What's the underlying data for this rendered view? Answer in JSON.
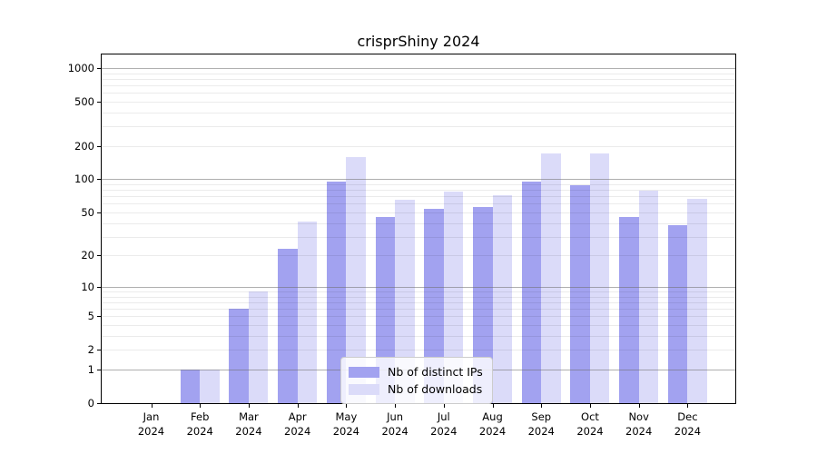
{
  "title": "crisprShiny 2024",
  "legend": {
    "items": [
      {
        "label": "Nb of distinct IPs",
        "color": "#a2a2f0"
      },
      {
        "label": "Nb of downloads",
        "color": "#dbdbf9"
      }
    ]
  },
  "chart_data": {
    "type": "bar",
    "title": "crisprShiny 2024",
    "categories": [
      "Jan 2024",
      "Feb 2024",
      "Mar 2024",
      "Apr 2024",
      "May 2024",
      "Jun 2024",
      "Jul 2024",
      "Aug 2024",
      "Sep 2024",
      "Oct 2024",
      "Nov 2024",
      "Dec 2024"
    ],
    "x_tick_line1": [
      "Jan",
      "Feb",
      "Mar",
      "Apr",
      "May",
      "Jun",
      "Jul",
      "Aug",
      "Sep",
      "Oct",
      "Nov",
      "Dec"
    ],
    "x_tick_line2": [
      "2024",
      "2024",
      "2024",
      "2024",
      "2024",
      "2024",
      "2024",
      "2024",
      "2024",
      "2024",
      "2024",
      "2024"
    ],
    "series": [
      {
        "name": "Nb of distinct IPs",
        "color": "#a2a2f0",
        "values": [
          0,
          1,
          6,
          23,
          96,
          45,
          54,
          56,
          96,
          89,
          45,
          38
        ]
      },
      {
        "name": "Nb of downloads",
        "color": "#dbdbf9",
        "values": [
          0,
          1,
          9,
          41,
          160,
          65,
          77,
          72,
          172,
          172,
          79,
          66
        ]
      }
    ],
    "yscale": "log(y+1)",
    "y_ticks": [
      0,
      1,
      2,
      5,
      10,
      20,
      50,
      100,
      200,
      500,
      1000
    ],
    "y_minor_ticks": [
      3,
      4,
      6,
      7,
      8,
      9,
      30,
      40,
      60,
      70,
      80,
      90,
      300,
      400,
      600,
      700,
      800,
      900
    ],
    "ylim": [
      0,
      1330
    ],
    "grid": true,
    "axis_below": false,
    "legend_position": "lower-center"
  }
}
